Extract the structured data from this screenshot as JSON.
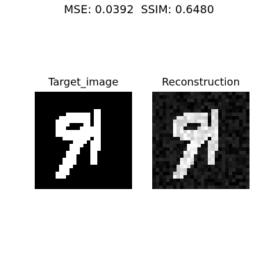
{
  "chart_data": [
    {
      "type": "heatmap",
      "suptitle": "MSE: 0.0392  SSIM: 0.6480",
      "metrics": {
        "MSE": 0.0392,
        "SSIM": 0.648
      },
      "title": "Target_image",
      "grid": false,
      "cmap": "gray",
      "value_range": [
        0,
        1
      ],
      "shape": [
        28,
        28
      ],
      "content": "binary handwritten digit 9 (white on black)"
    },
    {
      "type": "heatmap",
      "title": "Reconstruction",
      "grid": false,
      "cmap": "gray",
      "value_range": [
        0,
        1
      ],
      "shape": [
        28,
        28
      ],
      "content": "noisy grayscale reconstruction of the digit 9"
    }
  ]
}
